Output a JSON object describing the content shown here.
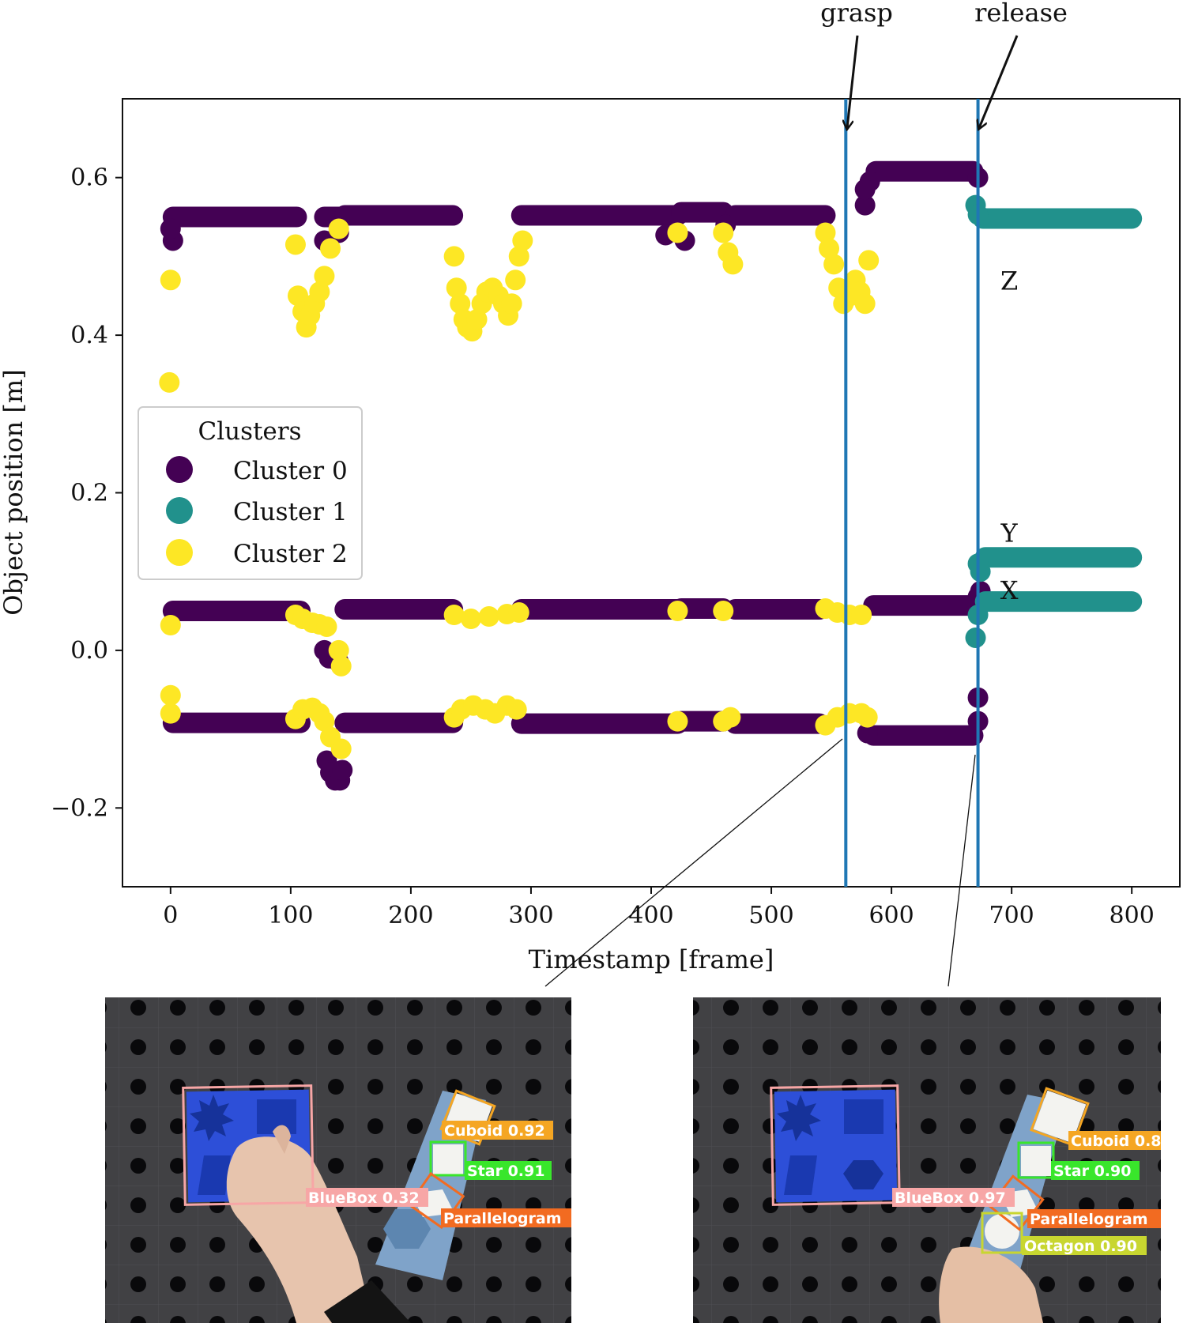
{
  "chart_data": {
    "type": "scatter",
    "xlabel": "Timestamp [frame]",
    "ylabel": "Object position [m]",
    "xlim": [
      -40,
      840
    ],
    "ylim": [
      -0.3,
      0.7
    ],
    "xticks": [
      0,
      100,
      200,
      300,
      400,
      500,
      600,
      700,
      800
    ],
    "yticks": [
      -0.2,
      0.0,
      0.2,
      0.4,
      0.6
    ],
    "ytick_labels": [
      "−0.2",
      "0.0",
      "0.2",
      "0.4",
      "0.6"
    ],
    "legend": {
      "title": "Clusters",
      "position": "center-left",
      "entries": [
        {
          "label": "Cluster 0",
          "color": "#440154"
        },
        {
          "label": "Cluster 1",
          "color": "#21918c"
        },
        {
          "label": "Cluster 2",
          "color": "#fde725"
        }
      ]
    },
    "vlines": [
      {
        "x": 562,
        "label": "grasp",
        "color": "#1f77b4"
      },
      {
        "x": 672,
        "label": "release",
        "color": "#1f77b4"
      }
    ],
    "axis_annotations": [
      {
        "text": "Z",
        "x": 698,
        "y": 0.47
      },
      {
        "text": "Y",
        "x": 698,
        "y": 0.15
      },
      {
        "text": "X",
        "x": 698,
        "y": 0.077
      }
    ],
    "series": [
      {
        "name": "Cluster 0",
        "color": "#440154",
        "segments": [
          {
            "x0": 2,
            "x1": 105,
            "y": 0.55
          },
          {
            "x0": 128,
            "x1": 140,
            "y": 0.55
          },
          {
            "x0": 145,
            "x1": 235,
            "y": 0.552
          },
          {
            "x0": 292,
            "x1": 422,
            "y": 0.552
          },
          {
            "x0": 425,
            "x1": 460,
            "y": 0.556
          },
          {
            "x0": 470,
            "x1": 545,
            "y": 0.552
          },
          {
            "x0": 587,
            "x1": 668,
            "y": 0.608
          },
          {
            "x0": 2,
            "x1": 108,
            "y": 0.05
          },
          {
            "x0": 145,
            "x1": 235,
            "y": 0.052
          },
          {
            "x0": 292,
            "x1": 422,
            "y": 0.052
          },
          {
            "x0": 425,
            "x1": 460,
            "y": 0.053
          },
          {
            "x0": 470,
            "x1": 540,
            "y": 0.052
          },
          {
            "x0": 585,
            "x1": 668,
            "y": 0.057
          },
          {
            "x0": 2,
            "x1": 108,
            "y": -0.092
          },
          {
            "x0": 145,
            "x1": 235,
            "y": -0.092
          },
          {
            "x0": 292,
            "x1": 422,
            "y": -0.093
          },
          {
            "x0": 425,
            "x1": 460,
            "y": -0.09
          },
          {
            "x0": 470,
            "x1": 540,
            "y": -0.093
          },
          {
            "x0": 585,
            "x1": 668,
            "y": -0.108
          }
        ],
        "points": [
          [
            2,
            0.52
          ],
          [
            0,
            0.535
          ],
          [
            128,
            0.52
          ],
          [
            140,
            0.53
          ],
          [
            428,
            0.52
          ],
          [
            412,
            0.527
          ],
          [
            462,
            0.54
          ],
          [
            578,
            0.565
          ],
          [
            582,
            0.595
          ],
          [
            578,
            0.585
          ],
          [
            672,
            0.6
          ],
          [
            128,
            0.0
          ],
          [
            140,
            -0.015
          ],
          [
            132,
            -0.01
          ],
          [
            672,
            0.068
          ],
          [
            674,
            0.075
          ],
          [
            130,
            -0.14
          ],
          [
            133,
            -0.155
          ],
          [
            137,
            -0.165
          ],
          [
            141,
            -0.165
          ],
          [
            143,
            -0.152
          ],
          [
            672,
            -0.06
          ],
          [
            672,
            -0.09
          ],
          [
            580,
            -0.105
          ]
        ]
      },
      {
        "name": "Cluster 1",
        "color": "#21918c",
        "segments": [
          {
            "x0": 676,
            "x1": 800,
            "y": 0.548
          },
          {
            "x0": 678,
            "x1": 800,
            "y": 0.118
          },
          {
            "x0": 678,
            "x1": 800,
            "y": 0.062
          }
        ],
        "points": [
          [
            670,
            0.565
          ],
          [
            672,
            0.553
          ],
          [
            674,
            0.1
          ],
          [
            672,
            0.11
          ],
          [
            672,
            0.045
          ],
          [
            670,
            0.016
          ]
        ]
      },
      {
        "name": "Cluster 2",
        "color": "#fde725",
        "points": [
          [
            0,
            0.47
          ],
          [
            -1,
            0.34
          ],
          [
            104,
            0.515
          ],
          [
            106,
            0.45
          ],
          [
            110,
            0.43
          ],
          [
            113,
            0.41
          ],
          [
            116,
            0.425
          ],
          [
            120,
            0.44
          ],
          [
            124,
            0.455
          ],
          [
            128,
            0.475
          ],
          [
            133,
            0.51
          ],
          [
            140,
            0.535
          ],
          [
            236,
            0.5
          ],
          [
            238,
            0.46
          ],
          [
            241,
            0.44
          ],
          [
            244,
            0.42
          ],
          [
            247,
            0.41
          ],
          [
            251,
            0.405
          ],
          [
            255,
            0.42
          ],
          [
            259,
            0.44
          ],
          [
            263,
            0.455
          ],
          [
            268,
            0.46
          ],
          [
            273,
            0.45
          ],
          [
            277,
            0.44
          ],
          [
            281,
            0.425
          ],
          [
            284,
            0.44
          ],
          [
            287,
            0.47
          ],
          [
            290,
            0.5
          ],
          [
            293,
            0.52
          ],
          [
            422,
            0.53
          ],
          [
            460,
            0.53
          ],
          [
            464,
            0.505
          ],
          [
            468,
            0.49
          ],
          [
            545,
            0.53
          ],
          [
            548,
            0.51
          ],
          [
            552,
            0.49
          ],
          [
            556,
            0.46
          ],
          [
            560,
            0.44
          ],
          [
            566,
            0.45
          ],
          [
            570,
            0.47
          ],
          [
            574,
            0.455
          ],
          [
            578,
            0.44
          ],
          [
            581,
            0.495
          ],
          [
            0,
            0.032
          ],
          [
            104,
            0.045
          ],
          [
            110,
            0.04
          ],
          [
            118,
            0.035
          ],
          [
            124,
            0.033
          ],
          [
            130,
            0.03
          ],
          [
            140,
            0.0
          ],
          [
            142,
            -0.02
          ],
          [
            236,
            0.045
          ],
          [
            250,
            0.04
          ],
          [
            265,
            0.043
          ],
          [
            280,
            0.046
          ],
          [
            290,
            0.048
          ],
          [
            422,
            0.05
          ],
          [
            460,
            0.05
          ],
          [
            545,
            0.053
          ],
          [
            555,
            0.048
          ],
          [
            565,
            0.045
          ],
          [
            575,
            0.045
          ],
          [
            0,
            -0.057
          ],
          [
            0,
            -0.08
          ],
          [
            104,
            -0.087
          ],
          [
            110,
            -0.075
          ],
          [
            118,
            -0.073
          ],
          [
            124,
            -0.08
          ],
          [
            128,
            -0.09
          ],
          [
            133,
            -0.11
          ],
          [
            142,
            -0.125
          ],
          [
            236,
            -0.085
          ],
          [
            242,
            -0.075
          ],
          [
            252,
            -0.07
          ],
          [
            262,
            -0.075
          ],
          [
            270,
            -0.08
          ],
          [
            280,
            -0.07
          ],
          [
            288,
            -0.075
          ],
          [
            422,
            -0.09
          ],
          [
            460,
            -0.09
          ],
          [
            466,
            -0.085
          ],
          [
            545,
            -0.095
          ],
          [
            555,
            -0.085
          ],
          [
            565,
            -0.08
          ],
          [
            575,
            -0.08
          ],
          [
            580,
            -0.085
          ]
        ]
      }
    ]
  },
  "photos": {
    "left": {
      "detections": [
        {
          "label": "Cuboid 0.92",
          "color": "#f5a623"
        },
        {
          "label": "Star 0.91",
          "color": "#39e62b"
        },
        {
          "label": "BlueBox 0.32",
          "color": "#f7a6a6"
        },
        {
          "label": "Parallelogram",
          "color": "#f26b21"
        }
      ]
    },
    "right": {
      "detections": [
        {
          "label": "Cuboid 0.8",
          "color": "#f5a623"
        },
        {
          "label": "Star 0.90",
          "color": "#39e62b"
        },
        {
          "label": "BlueBox 0.97",
          "color": "#f7a6a6"
        },
        {
          "label": "Parallelogram",
          "color": "#f26b21"
        },
        {
          "label": "Octagon 0.90",
          "color": "#c8d630"
        }
      ]
    }
  }
}
